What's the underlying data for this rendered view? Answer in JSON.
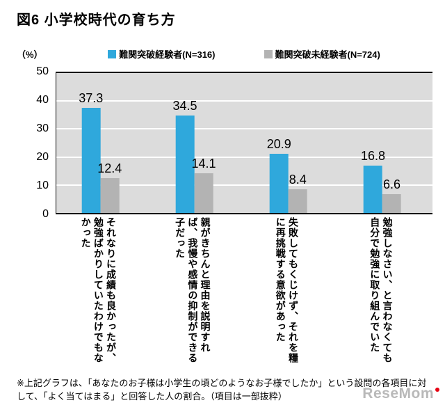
{
  "title": "図6 小学校時代の育ち方",
  "y_axis": {
    "unit_label": "（%）",
    "ticks": [
      50,
      40,
      30,
      20,
      10,
      0
    ],
    "max": 50
  },
  "legend": [
    {
      "label": "難関突破経験者(N=316)",
      "color": "#2fa8dc"
    },
    {
      "label": "難関突破未経験者(N=724)",
      "color": "#b3b3b3"
    }
  ],
  "chart_data": {
    "type": "bar",
    "title": "図6 小学校時代の育ち方",
    "categories": [
      "それなりに成績も良かったが、勉強ばかりしていたわけでもなかった",
      "親がきちんと理由を説明すれば、我慢や感情の抑制ができる子だった",
      "失敗してもくじけず、それを糧に再挑戦する意欲があった",
      "勉強しなさい、と言わなくても自分で勉強に取り組んでいた"
    ],
    "series": [
      {
        "name": "難関突破経験者(N=316)",
        "color": "#2fa8dc",
        "values": [
          37.3,
          34.5,
          20.9,
          16.8
        ]
      },
      {
        "name": "難関突破未経験者(N=724)",
        "color": "#b3b3b3",
        "values": [
          12.4,
          14.1,
          8.4,
          6.6
        ]
      }
    ],
    "ylim": [
      0,
      50
    ],
    "ylabel": "（%）",
    "grid": true,
    "legend_position": "top",
    "plot_background": "#dcdcdc",
    "gridline_color": "#ffffff"
  },
  "footnote": "※上記グラフは、「あなたのお子様は小学生の頃どのようなお子様でしたか」という設問の各項目に対して、「よく当てはまる」と回答した人の割合。（項目は一部抜粋）",
  "watermark": "ReseMom"
}
